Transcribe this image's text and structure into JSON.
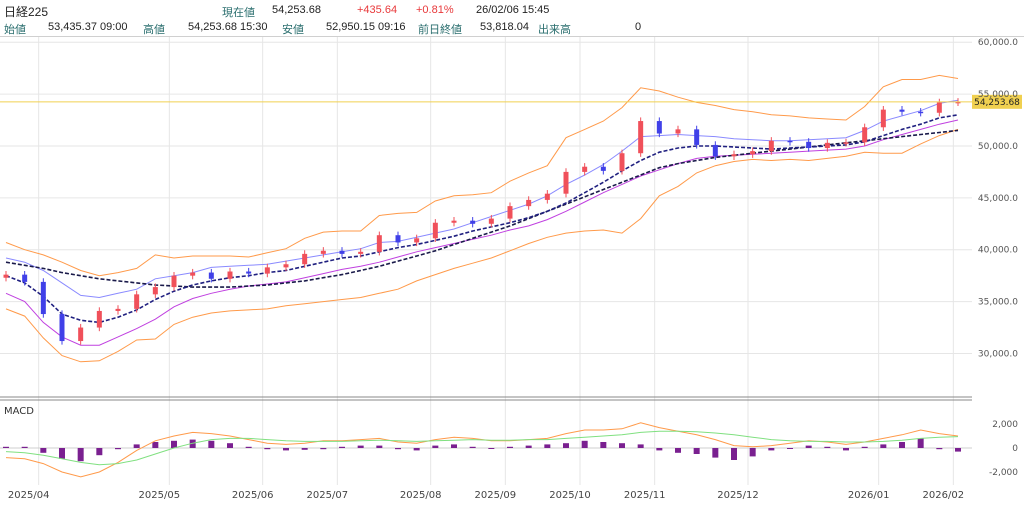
{
  "header": {
    "title": "日経225",
    "current_label": "現在値",
    "current_value": "54,253.68",
    "change": "+435.64",
    "change_pct": "+0.81%",
    "datetime": "26/02/06  15:45",
    "open_label": "始値",
    "open_value": "53,435.37  09:00",
    "high_label": "高値",
    "high_value": "54,253.68  15:30",
    "low_label": "安値",
    "low_value": "52,950.15  09:16",
    "prev_label": "前日終値",
    "prev_value": "53,818.04",
    "volume_label": "出来高",
    "volume_value": "0"
  },
  "colors": {
    "up": "#f0505a",
    "down": "#4040e8",
    "bb2": "#ff9a4a",
    "bb1": "#8a8aff",
    "mid_bb": "#c040e0",
    "ma_long": "#1a1a4a",
    "ma_mid": "#202080",
    "price_line": "#f0d050",
    "macd_hist": "#7a2090",
    "macd_line": "#ff9a4a",
    "signal_line": "#80e080"
  },
  "price_tag": "54,253.68",
  "macd_label": "MACD",
  "chart_data": [
    {
      "type": "candlestick",
      "title": "日経225",
      "y_ticks": [
        "60,000.0",
        "55,000.0",
        "50,000.0",
        "45,000.0",
        "40,000.0",
        "35,000.0",
        "30,000.0"
      ],
      "y_tick_values": [
        60000,
        55000,
        50000,
        45000,
        40000,
        35000,
        30000
      ],
      "ylim": [
        26000,
        60500
      ],
      "x_ticks": [
        "2025/04",
        "2025/05",
        "2025/06",
        "2025/07",
        "2025/08",
        "2025/09",
        "2025/10",
        "2025/11",
        "2025/12",
        "2026/01",
        "2026/02"
      ],
      "dates": [
        "2025/03/24",
        "2025/04/01",
        "2025/04/04",
        "2025/04/07",
        "2025/04/10",
        "2025/04/15",
        "2025/04/21",
        "2025/04/25",
        "2025/05/01",
        "2025/05/08",
        "2025/05/15",
        "2025/05/22",
        "2025/05/29",
        "2025/06/05",
        "2025/06/12",
        "2025/06/19",
        "2025/06/26",
        "2025/07/03",
        "2025/07/10",
        "2025/07/17",
        "2025/07/24",
        "2025/07/31",
        "2025/08/07",
        "2025/08/14",
        "2025/08/21",
        "2025/08/28",
        "2025/09/04",
        "2025/09/11",
        "2025/09/18",
        "2025/09/25",
        "2025/10/02",
        "2025/10/09",
        "2025/10/16",
        "2025/10/23",
        "2025/10/30",
        "2025/11/04",
        "2025/11/07",
        "2025/11/12",
        "2025/11/18",
        "2025/11/21",
        "2025/11/27",
        "2025/12/03",
        "2025/12/10",
        "2025/12/17",
        "2025/12/24",
        "2025/12/30",
        "2026/01/07",
        "2026/01/14",
        "2026/01/21",
        "2026/01/28",
        "2026/02/03",
        "2026/02/06"
      ],
      "close": [
        37600,
        36900,
        33800,
        31200,
        32500,
        34100,
        34300,
        35700,
        36400,
        37500,
        37800,
        37200,
        37900,
        37700,
        38300,
        38600,
        39600,
        39900,
        39600,
        39800,
        41400,
        40700,
        41100,
        42600,
        42800,
        42500,
        43000,
        44200,
        44800,
        45400,
        47500,
        48000,
        47600,
        49300,
        52400,
        51200,
        51600,
        50100,
        49000,
        49200,
        49500,
        50500,
        50400,
        49800,
        50300,
        50350,
        51800,
        53500,
        53300,
        53200,
        54200,
        54253.68
      ],
      "ma_25": [
        37500,
        36800,
        35500,
        33800,
        33200,
        33000,
        33500,
        34200,
        35200,
        36000,
        36600,
        37000,
        37300,
        37500,
        37800,
        38000,
        38400,
        38800,
        39200,
        39400,
        39800,
        40200,
        40500,
        40900,
        41300,
        41800,
        42200,
        42600,
        43100,
        43700,
        44500,
        45500,
        46500,
        47600,
        48600,
        49400,
        49800,
        50000,
        50000,
        49900,
        49800,
        49700,
        49800,
        49900,
        50000,
        50100,
        50400,
        51000,
        51600,
        52100,
        52700,
        53000
      ],
      "ma_75": [
        38800,
        38500,
        38200,
        37800,
        37500,
        37200,
        37000,
        36800,
        36600,
        36500,
        36400,
        36400,
        36400,
        36500,
        36600,
        36800,
        37000,
        37300,
        37600,
        38000,
        38400,
        38900,
        39400,
        39900,
        40500,
        41100,
        41700,
        42300,
        43000,
        43700,
        44400,
        45100,
        45800,
        46500,
        47200,
        47900,
        48300,
        48600,
        48900,
        49100,
        49300,
        49500,
        49700,
        49900,
        50100,
        50300,
        50500,
        50700,
        50900,
        51100,
        51300,
        51500
      ],
      "bb_upper2": [
        40700,
        40000,
        39500,
        38800,
        38000,
        37500,
        37800,
        38200,
        39500,
        39200,
        39400,
        39400,
        39400,
        39300,
        39700,
        40100,
        41100,
        41700,
        41800,
        41800,
        43300,
        43500,
        43600,
        44700,
        45200,
        45300,
        45500,
        46600,
        47400,
        48100,
        50800,
        51600,
        52400,
        53700,
        55600,
        55300,
        54700,
        54200,
        53900,
        53500,
        53300,
        53000,
        52900,
        52700,
        52600,
        52500,
        53800,
        55700,
        56400,
        56400,
        56800,
        56500
      ],
      "bb_lower2": [
        34300,
        33600,
        31500,
        29800,
        29200,
        29300,
        30200,
        31300,
        31400,
        32800,
        33500,
        33900,
        34100,
        34200,
        34300,
        34600,
        34800,
        35000,
        35200,
        35400,
        35800,
        36200,
        37000,
        37600,
        38200,
        38700,
        39200,
        39900,
        40600,
        41200,
        41600,
        41800,
        41900,
        41600,
        43000,
        45200,
        46100,
        47400,
        48100,
        48500,
        48700,
        48600,
        48700,
        48600,
        48800,
        49000,
        49400,
        49300,
        49300,
        50200,
        51000,
        51600
      ],
      "bb_upper1": [
        39200,
        38800,
        38000,
        36800,
        35600,
        35400,
        35800,
        36200,
        37200,
        37500,
        37800,
        38300,
        38400,
        38500,
        38600,
        38900,
        39200,
        39500,
        39800,
        40100,
        40700,
        40800,
        41200,
        41600,
        42000,
        42600,
        43200,
        43800,
        44400,
        45200,
        46300,
        47200,
        48200,
        49500,
        50900,
        51000,
        51100,
        51000,
        50900,
        50700,
        50600,
        50500,
        50500,
        50600,
        50700,
        50800,
        51500,
        52400,
        52900,
        53400,
        54100,
        54400
      ],
      "bb_lower1": [
        35800,
        35000,
        33000,
        31600,
        30800,
        30800,
        31600,
        32400,
        33300,
        34500,
        35300,
        35800,
        36200,
        36500,
        36700,
        36900,
        37300,
        37700,
        38100,
        38400,
        38800,
        39300,
        39800,
        40200,
        40600,
        41000,
        41400,
        41900,
        42300,
        42900,
        43700,
        44600,
        45500,
        46300,
        47100,
        47700,
        48300,
        48800,
        49000,
        49100,
        49200,
        49300,
        49400,
        49500,
        49600,
        49700,
        50000,
        50600,
        51100,
        51600,
        52100,
        52500
      ],
      "series_note": ""
    },
    {
      "type": "bar",
      "title": "MACD",
      "y_ticks": [
        "2,000",
        "0",
        "-2,000"
      ],
      "y_tick_values": [
        2000,
        0,
        -2000
      ],
      "ylim": [
        -2500,
        2500
      ],
      "histogram": [
        100,
        100,
        -400,
        -900,
        -1100,
        -600,
        -100,
        300,
        500,
        600,
        700,
        600,
        400,
        100,
        -100,
        -200,
        -150,
        -100,
        100,
        200,
        200,
        -100,
        -200,
        200,
        300,
        100,
        0,
        100,
        200,
        300,
        400,
        600,
        500,
        400,
        300,
        -200,
        -400,
        -500,
        -800,
        -1000,
        -700,
        -200,
        0,
        200,
        100,
        -200,
        100,
        300,
        500,
        800,
        -100,
        -300
      ],
      "macd": [
        -800,
        -900,
        -1300,
        -2000,
        -2400,
        -2000,
        -1200,
        -200,
        600,
        1000,
        1300,
        1200,
        1000,
        700,
        400,
        300,
        400,
        600,
        600,
        700,
        800,
        500,
        400,
        700,
        900,
        800,
        600,
        600,
        700,
        800,
        1200,
        1500,
        1500,
        1600,
        2100,
        1700,
        1400,
        1100,
        700,
        200,
        100,
        200,
        400,
        600,
        500,
        300,
        500,
        800,
        1100,
        1500,
        1200,
        1000
      ],
      "signal": [
        -300,
        -400,
        -600,
        -900,
        -1200,
        -1400,
        -1300,
        -1000,
        -500,
        0,
        400,
        700,
        800,
        800,
        700,
        600,
        550,
        550,
        550,
        600,
        650,
        600,
        550,
        600,
        650,
        700,
        650,
        650,
        700,
        700,
        800,
        900,
        1000,
        1100,
        1300,
        1400,
        1400,
        1350,
        1250,
        1100,
        900,
        700,
        600,
        550,
        550,
        500,
        500,
        550,
        650,
        800,
        900,
        950
      ],
      "series_note": ""
    }
  ]
}
